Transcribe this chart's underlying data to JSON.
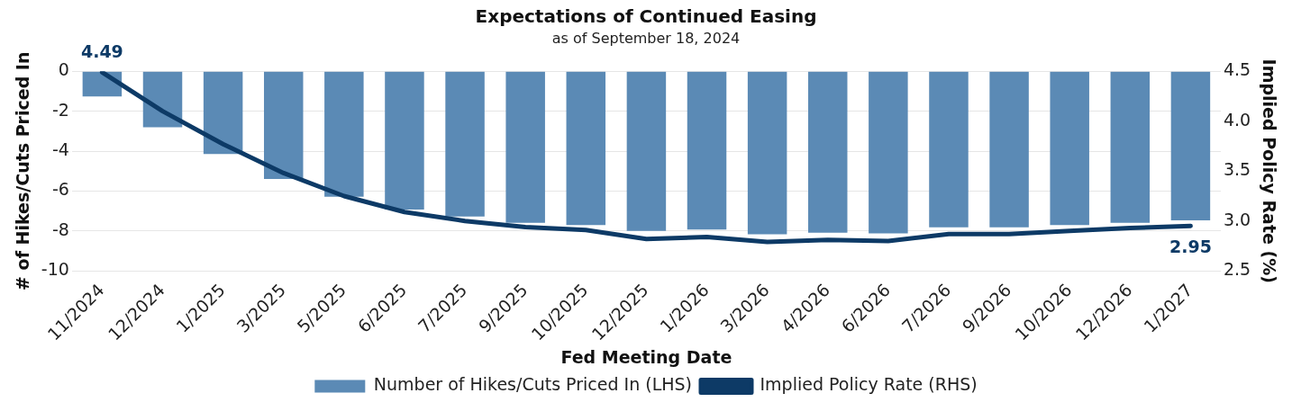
{
  "chart_data": {
    "type": "bar",
    "title": "Expectations of Continued Easing",
    "subtitle": "as of September 18, 2024",
    "xlabel": "Fed Meeting Date",
    "ylabel": "# of Hikes/Cuts Priced In",
    "y2label": "Implied Policy Rate (%)",
    "categories": [
      "11/2024",
      "12/2024",
      "1/2025",
      "3/2025",
      "5/2025",
      "6/2025",
      "7/2025",
      "9/2025",
      "10/2025",
      "12/2025",
      "1/2026",
      "3/2026",
      "4/2026",
      "6/2026",
      "7/2026",
      "9/2026",
      "10/2026",
      "12/2026",
      "1/2027"
    ],
    "series": [
      {
        "name": "Number of Hikes/Cuts Priced In (LHS)",
        "color": "#5b8ab5",
        "values": [
          -1.26,
          -2.8,
          -4.14,
          -5.4,
          -6.28,
          -6.93,
          -7.28,
          -7.59,
          -7.7,
          -8.0,
          -7.93,
          -8.16,
          -8.08,
          -8.12,
          -7.82,
          -7.82,
          -7.7,
          -7.59,
          -7.47
        ]
      },
      {
        "name": "Implied Policy Rate (RHS)",
        "type": "line",
        "axis": "y2",
        "color": "#0d3a66",
        "values": [
          4.49,
          4.1,
          3.77,
          3.48,
          3.25,
          3.09,
          3.0,
          2.94,
          2.91,
          2.82,
          2.84,
          2.79,
          2.81,
          2.8,
          2.87,
          2.87,
          2.9,
          2.93,
          2.95
        ],
        "value_labels": [
          "4.49",
          null,
          null,
          null,
          null,
          null,
          null,
          null,
          null,
          null,
          null,
          null,
          null,
          null,
          null,
          null,
          null,
          null,
          "2.95"
        ]
      }
    ],
    "ylim": [
      -10,
      0
    ],
    "yticks": [
      -10,
      -8,
      -6,
      -4,
      -2,
      0
    ],
    "y2lim": [
      2.5,
      4.5
    ],
    "y2ticks": [
      2.5,
      {
        "value": 3,
        "label": "3.0"
      },
      3.5,
      {
        "value": 4,
        "label": "4.0"
      },
      4.5
    ],
    "grid": "y",
    "legend": "bottom",
    "marker": "none"
  }
}
